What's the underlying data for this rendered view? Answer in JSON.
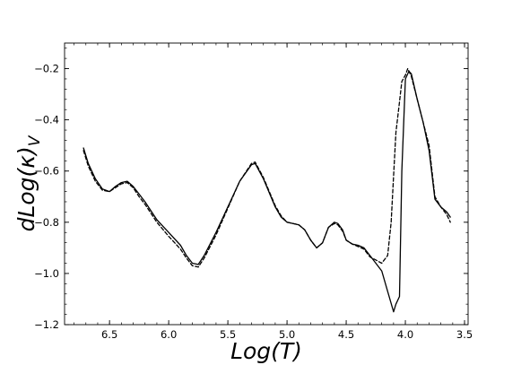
{
  "chart_data": {
    "type": "line",
    "title": "",
    "xlabel": "Log(T)",
    "ylabel_main": "dLog(κ)",
    "ylabel_sub": "V",
    "x_inverted": true,
    "xlim": [
      6.88,
      3.47
    ],
    "ylim": [
      -1.2,
      -0.1
    ],
    "xticks": [
      6.5,
      6.0,
      5.5,
      5.0,
      4.5,
      4.0,
      3.5
    ],
    "xtick_labels": [
      "6.5",
      "6.0",
      "5.5",
      "5.0",
      "4.5",
      "4.0",
      "3.5"
    ],
    "yticks": [
      -1.2,
      -1.0,
      -0.8,
      -0.6,
      -0.4,
      -0.2
    ],
    "ytick_labels": [
      "−1.2",
      "−1.0",
      "−0.8",
      "−0.6",
      "−0.4",
      "−0.2"
    ],
    "grid": false,
    "legend": "none",
    "series": [
      {
        "style": "solid",
        "color": "#000000",
        "x": [
          6.72,
          6.68,
          6.62,
          6.56,
          6.5,
          6.45,
          6.4,
          6.35,
          6.3,
          6.25,
          6.2,
          6.1,
          6.0,
          5.9,
          5.85,
          5.8,
          5.75,
          5.7,
          5.6,
          5.5,
          5.4,
          5.3,
          5.27,
          5.2,
          5.1,
          5.05,
          5.0,
          4.95,
          4.9,
          4.85,
          4.8,
          4.75,
          4.7,
          4.65,
          4.6,
          4.57,
          4.53,
          4.5,
          4.45,
          4.4,
          4.35,
          4.3,
          4.2,
          4.15,
          4.1,
          4.08,
          4.05,
          4.03,
          4.0,
          3.97,
          3.95,
          3.9,
          3.85,
          3.8,
          3.75,
          3.7,
          3.65,
          3.62
        ],
        "y": [
          -0.51,
          -0.57,
          -0.63,
          -0.67,
          -0.68,
          -0.66,
          -0.645,
          -0.64,
          -0.66,
          -0.69,
          -0.72,
          -0.79,
          -0.84,
          -0.89,
          -0.93,
          -0.96,
          -0.965,
          -0.93,
          -0.84,
          -0.74,
          -0.64,
          -0.575,
          -0.57,
          -0.63,
          -0.74,
          -0.78,
          -0.8,
          -0.805,
          -0.81,
          -0.83,
          -0.87,
          -0.9,
          -0.88,
          -0.82,
          -0.8,
          -0.805,
          -0.83,
          -0.87,
          -0.885,
          -0.89,
          -0.9,
          -0.93,
          -0.99,
          -1.07,
          -1.15,
          -1.12,
          -1.09,
          -0.6,
          -0.24,
          -0.21,
          -0.22,
          -0.32,
          -0.41,
          -0.52,
          -0.71,
          -0.74,
          -0.76,
          -0.78
        ]
      },
      {
        "style": "dashed",
        "color": "#000000",
        "x": [
          6.72,
          6.68,
          6.62,
          6.56,
          6.5,
          6.45,
          6.4,
          6.35,
          6.3,
          6.25,
          6.2,
          6.1,
          6.0,
          5.9,
          5.85,
          5.8,
          5.75,
          5.7,
          5.6,
          5.5,
          5.4,
          5.3,
          5.27,
          5.2,
          5.1,
          5.05,
          5.0,
          4.95,
          4.9,
          4.85,
          4.8,
          4.75,
          4.7,
          4.65,
          4.6,
          4.57,
          4.53,
          4.5,
          4.45,
          4.4,
          4.35,
          4.3,
          4.2,
          4.15,
          4.12,
          4.1,
          4.08,
          4.05,
          4.03,
          4.0,
          3.98,
          3.95,
          3.9,
          3.85,
          3.8,
          3.75,
          3.7,
          3.65,
          3.62
        ],
        "y": [
          -0.52,
          -0.58,
          -0.64,
          -0.675,
          -0.68,
          -0.665,
          -0.65,
          -0.645,
          -0.665,
          -0.7,
          -0.73,
          -0.8,
          -0.855,
          -0.905,
          -0.94,
          -0.97,
          -0.975,
          -0.94,
          -0.85,
          -0.745,
          -0.64,
          -0.57,
          -0.565,
          -0.625,
          -0.735,
          -0.775,
          -0.8,
          -0.805,
          -0.81,
          -0.83,
          -0.87,
          -0.9,
          -0.88,
          -0.82,
          -0.805,
          -0.81,
          -0.835,
          -0.87,
          -0.885,
          -0.895,
          -0.905,
          -0.935,
          -0.96,
          -0.93,
          -0.8,
          -0.62,
          -0.45,
          -0.33,
          -0.25,
          -0.225,
          -0.2,
          -0.23,
          -0.32,
          -0.41,
          -0.5,
          -0.7,
          -0.74,
          -0.77,
          -0.8
        ]
      }
    ]
  }
}
